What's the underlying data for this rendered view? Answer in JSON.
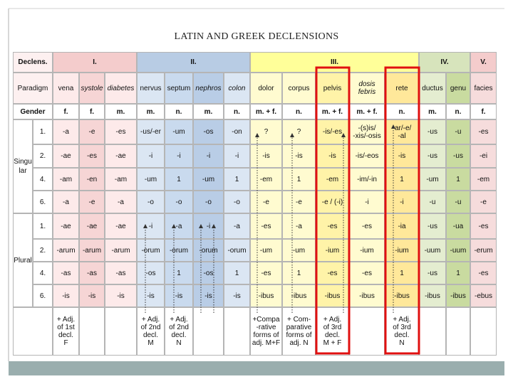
{
  "title": "LATIN AND GREEK DECLENSIONS",
  "table": {
    "declension_label": "Declens.",
    "groups": [
      "I.",
      "II.",
      "III.",
      "IV.",
      "V."
    ],
    "paradigm_label": "Paradigm",
    "paradigms": [
      "vena",
      "systole",
      "diabetes",
      "nervus",
      "septum",
      "nephros",
      "colon",
      "dolor",
      "corpus",
      "pelvis",
      "dosis\nfebris",
      "rete",
      "ductus",
      "genu",
      "facies"
    ],
    "gender_label": "Gender",
    "genders": [
      "f.",
      "f.",
      "m.",
      "m.",
      "n.",
      "m.",
      "n.",
      "m. + f.",
      "n.",
      "m. + f.",
      "m. + f.",
      "n.",
      "m.",
      "n.",
      "f."
    ],
    "singular_label": "Singular",
    "plural_label": "Plural",
    "singular": [
      {
        "case": "1.",
        "cells": [
          "-a",
          "-e",
          "-es",
          "-us/-er",
          "-um",
          "-os",
          "-on",
          "?",
          "?",
          "-is/-es",
          "-(s)is/\n-xis/-osis",
          "-ar/-e/\n-al",
          "-us",
          "-u",
          "-es"
        ]
      },
      {
        "case": "2.",
        "cells": [
          "-ae",
          "-es",
          "-ae",
          "-i",
          "-i",
          "-i",
          "-i",
          "-is",
          "-is",
          "-is",
          "-is/-eos",
          "-is",
          "-us",
          "-us",
          "-ei"
        ]
      },
      {
        "case": "4.",
        "cells": [
          "-am",
          "-en",
          "-am",
          "-um",
          "1",
          "-um",
          "1",
          "-em",
          "1",
          "-em",
          "-im/-in",
          "1",
          "-um",
          "1",
          "-em"
        ]
      },
      {
        "case": "6.",
        "cells": [
          "-a",
          "-e",
          "-a",
          "-o",
          "-o",
          "-o",
          "-o",
          "-e",
          "-e",
          "-e / (-i)",
          "-i",
          "-i",
          "-u",
          "-u",
          "-e"
        ]
      }
    ],
    "plural": [
      {
        "case": "1.",
        "cells": [
          "-ae",
          "-ae",
          "-ae",
          "-i",
          "-a",
          "-i",
          "-a",
          "-es",
          "-a",
          "-es",
          "-es",
          "-ia",
          "-us",
          "-ua",
          "-es"
        ]
      },
      {
        "case": "2.",
        "cells": [
          "-arum",
          "-arum",
          "-arum",
          "-orum",
          "-orum",
          "-orum",
          "-orum",
          "-um",
          "-um",
          "-ium",
          "-ium",
          "-ium",
          "-uum",
          "-uum",
          "-erum"
        ]
      },
      {
        "case": "4.",
        "cells": [
          "-as",
          "-as",
          "-as",
          "-os",
          "1",
          "-os",
          "1",
          "-es",
          "1",
          "-es",
          "-es",
          "1",
          "-us",
          "1",
          "-es"
        ]
      },
      {
        "case": "6.",
        "cells": [
          "-is",
          "-is",
          "-is",
          "-is",
          "-is",
          "-is",
          "-is",
          "-ibus",
          "-ibus",
          "-ibus",
          "-ibus",
          "-ibus",
          "-ibus",
          "-ibus",
          "-ebus"
        ]
      }
    ],
    "notes": [
      "+ Adj.\nof 1st\ndecl.\nF",
      null,
      null,
      "+ Adj.\nof 2nd\ndecl.\nM",
      "+ Adj.\nof 2nd\ndecl.\nN",
      null,
      null,
      "+Compa\n-rative\nforms of\nadj. M+F",
      "+ Com-\nparative\nforms of\nadj. N",
      "+ Adj.\nof 3rd\ndecl.\nM + F",
      null,
      "+ Adj.\nof 3rd\ndecl.\nN",
      null,
      null,
      null
    ]
  }
}
